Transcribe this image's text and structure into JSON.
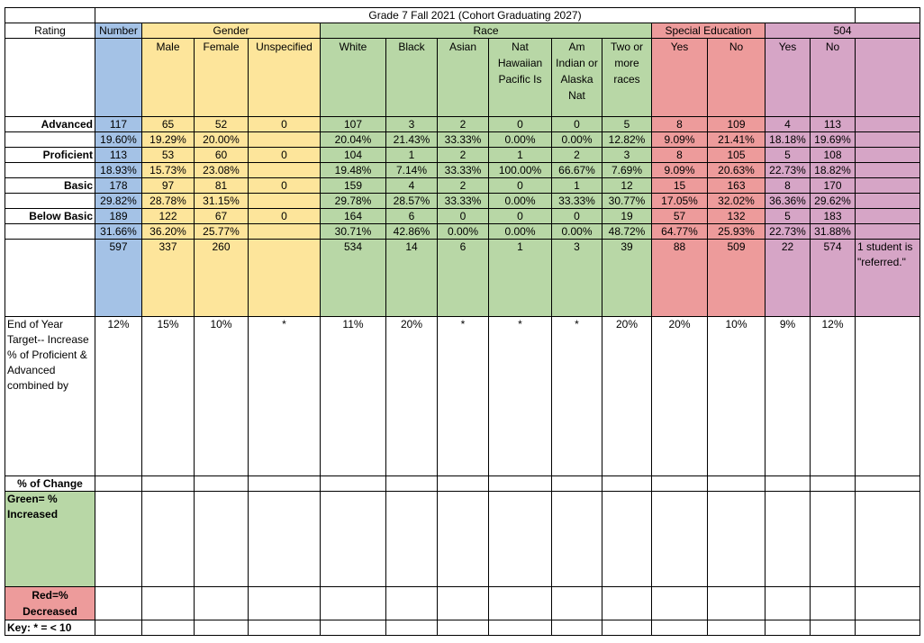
{
  "title": "Grade 7 Fall 2021 (Cohort Graduating 2027)",
  "headers": {
    "rating": "Rating",
    "number": "Number",
    "gender": "Gender",
    "race": "Race",
    "sped": "Special Education",
    "s504": "504",
    "cols": [
      "Male",
      "Female",
      "Unspecified",
      "White",
      "Black",
      "Asian",
      "Nat Hawaiian Pacific Is",
      "Am Indian or Alaska Nat",
      "Two or more races",
      "Yes",
      "No",
      "Yes",
      "No"
    ]
  },
  "rows": [
    {
      "label": "Advanced",
      "counts": [
        "117",
        "65",
        "52",
        "0",
        "107",
        "3",
        "2",
        "0",
        "0",
        "5",
        "8",
        "109",
        "4",
        "113"
      ],
      "pcts": [
        "19.60%",
        "19.29%",
        "20.00%",
        "",
        "20.04%",
        "21.43%",
        "33.33%",
        "0.00%",
        "0.00%",
        "12.82%",
        "9.09%",
        "21.41%",
        "18.18%",
        "19.69%"
      ]
    },
    {
      "label": "Proficient",
      "counts": [
        "113",
        "53",
        "60",
        "0",
        "104",
        "1",
        "2",
        "1",
        "2",
        "3",
        "8",
        "105",
        "5",
        "108"
      ],
      "pcts": [
        "18.93%",
        "15.73%",
        "23.08%",
        "",
        "19.48%",
        "7.14%",
        "33.33%",
        "100.00%",
        "66.67%",
        "7.69%",
        "9.09%",
        "20.63%",
        "22.73%",
        "18.82%"
      ]
    },
    {
      "label": "Basic",
      "counts": [
        "178",
        "97",
        "81",
        "0",
        "159",
        "4",
        "2",
        "0",
        "1",
        "12",
        "15",
        "163",
        "8",
        "170"
      ],
      "pcts": [
        "29.82%",
        "28.78%",
        "31.15%",
        "",
        "29.78%",
        "28.57%",
        "33.33%",
        "0.00%",
        "33.33%",
        "30.77%",
        "17.05%",
        "32.02%",
        "36.36%",
        "29.62%"
      ]
    },
    {
      "label": "Below Basic",
      "counts": [
        "189",
        "122",
        "67",
        "0",
        "164",
        "6",
        "0",
        "0",
        "0",
        "19",
        "57",
        "132",
        "5",
        "183"
      ],
      "pcts": [
        "31.66%",
        "36.20%",
        "25.77%",
        "",
        "30.71%",
        "42.86%",
        "0.00%",
        "0.00%",
        "0.00%",
        "48.72%",
        "64.77%",
        "25.93%",
        "22.73%",
        "31.88%"
      ]
    }
  ],
  "totals": [
    "597",
    "337",
    "260",
    "",
    "534",
    "14",
    "6",
    "1",
    "3",
    "39",
    "88",
    "509",
    "22",
    "574"
  ],
  "totals_note": "1 student is \"referred.\"",
  "target": {
    "label": "End of Year Target-- Increase % of Proficient & Advanced combined  by",
    "values": [
      "12%",
      "15%",
      "10%",
      "*",
      "11%",
      "20%",
      "*",
      "*",
      "*",
      "20%",
      "20%",
      "10%",
      "9%",
      "12%"
    ]
  },
  "change_label": "% of Change",
  "green_label": "Green= % Increased",
  "red_label": "Red=% Decreased",
  "key_label": "Key: * = < 10"
}
